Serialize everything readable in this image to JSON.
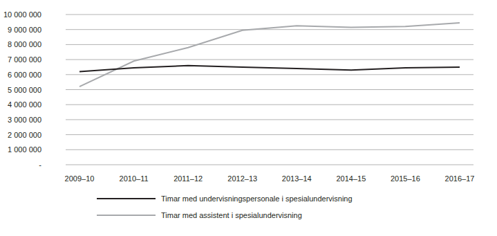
{
  "chart_data": {
    "type": "line",
    "categories": [
      "2009–10",
      "2010–11",
      "2011–12",
      "2012–13",
      "2013–14",
      "2014–15",
      "2015–16",
      "2016–17"
    ],
    "series": [
      {
        "name": "Timar med undervisningspersonale i spesialundervisning",
        "color": "#231f20",
        "values": [
          6200000,
          6450000,
          6600000,
          6500000,
          6400000,
          6300000,
          6450000,
          6500000
        ]
      },
      {
        "name": "Timar med assistent i spesialundervisning",
        "color": "#a7a9ac",
        "values": [
          5200000,
          6900000,
          7800000,
          8950000,
          9250000,
          9150000,
          9200000,
          9450000
        ]
      }
    ],
    "ylim": [
      0,
      10000000
    ],
    "yticks": [
      {
        "value": 0,
        "label": "-"
      },
      {
        "value": 1000000,
        "label": "1 000 000"
      },
      {
        "value": 2000000,
        "label": "2 000 000"
      },
      {
        "value": 3000000,
        "label": "3 000 000"
      },
      {
        "value": 4000000,
        "label": "4 000 000"
      },
      {
        "value": 5000000,
        "label": "5 000 000"
      },
      {
        "value": 6000000,
        "label": "6 000 000"
      },
      {
        "value": 7000000,
        "label": "7 000 000"
      },
      {
        "value": 8000000,
        "label": "8 000 000"
      },
      {
        "value": 9000000,
        "label": "9 000 000"
      },
      {
        "value": 10000000,
        "label": "10 000 000"
      }
    ],
    "grid": true,
    "legend": "bottom"
  }
}
